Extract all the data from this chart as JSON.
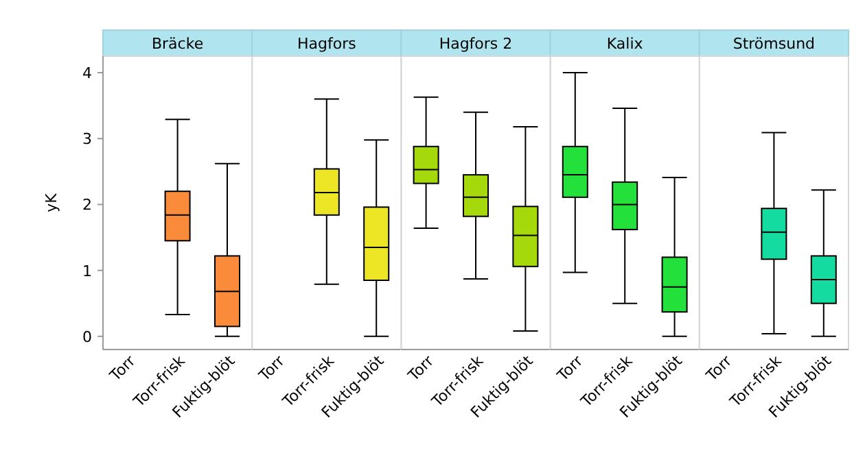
{
  "chart_data": [
    {
      "type": "box",
      "title": "Bräcke",
      "ylabel": "yK",
      "categories": [
        "Torr",
        "Torr-frisk",
        "Fuktig-blöt"
      ],
      "color": "#f98b3a",
      "ylim": [
        -0.2,
        4.25
      ],
      "yticks": [
        0,
        1,
        2,
        3,
        4
      ],
      "boxes": [
        null,
        {
          "low": 0.33,
          "q1": 1.45,
          "median": 1.84,
          "q3": 2.2,
          "high": 3.29
        },
        {
          "low": 0,
          "q1": 0.15,
          "median": 0.68,
          "q3": 1.22,
          "high": 2.62
        }
      ]
    },
    {
      "type": "box",
      "title": "Hagfors",
      "categories": [
        "Torr",
        "Torr-frisk",
        "Fuktig-blöt"
      ],
      "color": "#ede626",
      "ylim": [
        -0.2,
        4.25
      ],
      "tick_labels": "x",
      "boxes": [
        null,
        {
          "low": 0.79,
          "q1": 1.84,
          "median": 2.18,
          "q3": 2.54,
          "high": 3.6
        },
        {
          "low": 0,
          "q1": 0.85,
          "median": 1.35,
          "q3": 1.96,
          "high": 2.98
        }
      ]
    },
    {
      "type": "box",
      "title": "Hagfors 2",
      "categories": [
        "Torr",
        "Torr-frisk",
        "Fuktig-blöt"
      ],
      "color": "#a6d90c",
      "ylim": [
        -0.2,
        4.25
      ],
      "tick_labels": "x",
      "boxes": [
        {
          "low": 1.64,
          "q1": 2.32,
          "median": 2.53,
          "q3": 2.88,
          "high": 3.63
        },
        {
          "low": 0.87,
          "q1": 1.82,
          "median": 2.11,
          "q3": 2.45,
          "high": 3.4
        },
        {
          "low": 0.08,
          "q1": 1.06,
          "median": 1.53,
          "q3": 1.97,
          "high": 3.18
        }
      ]
    },
    {
      "type": "box",
      "title": "Kalix",
      "categories": [
        "Torr",
        "Torr-frisk",
        "Fuktig-blöt"
      ],
      "color": "#23e03a",
      "ylim": [
        -0.2,
        4.25
      ],
      "tick_labels": "x",
      "boxes": [
        {
          "low": 0.97,
          "q1": 2.11,
          "median": 2.45,
          "q3": 2.88,
          "high": 4.0
        },
        {
          "low": 0.5,
          "q1": 1.62,
          "median": 2.0,
          "q3": 2.34,
          "high": 3.46
        },
        {
          "low": 0,
          "q1": 0.37,
          "median": 0.75,
          "q3": 1.2,
          "high": 2.41
        }
      ]
    },
    {
      "type": "box",
      "title": "Strömsund",
      "categories": [
        "Torr",
        "Torr-frisk",
        "Fuktig-blöt"
      ],
      "color": "#14dca0",
      "ylim": [
        -0.2,
        4.25
      ],
      "tick_labels": "x",
      "boxes": [
        null,
        {
          "low": 0.04,
          "q1": 1.17,
          "median": 1.58,
          "q3": 1.94,
          "high": 3.09
        },
        {
          "low": 0,
          "q1": 0.5,
          "median": 0.86,
          "q3": 1.22,
          "high": 2.22
        }
      ]
    }
  ]
}
